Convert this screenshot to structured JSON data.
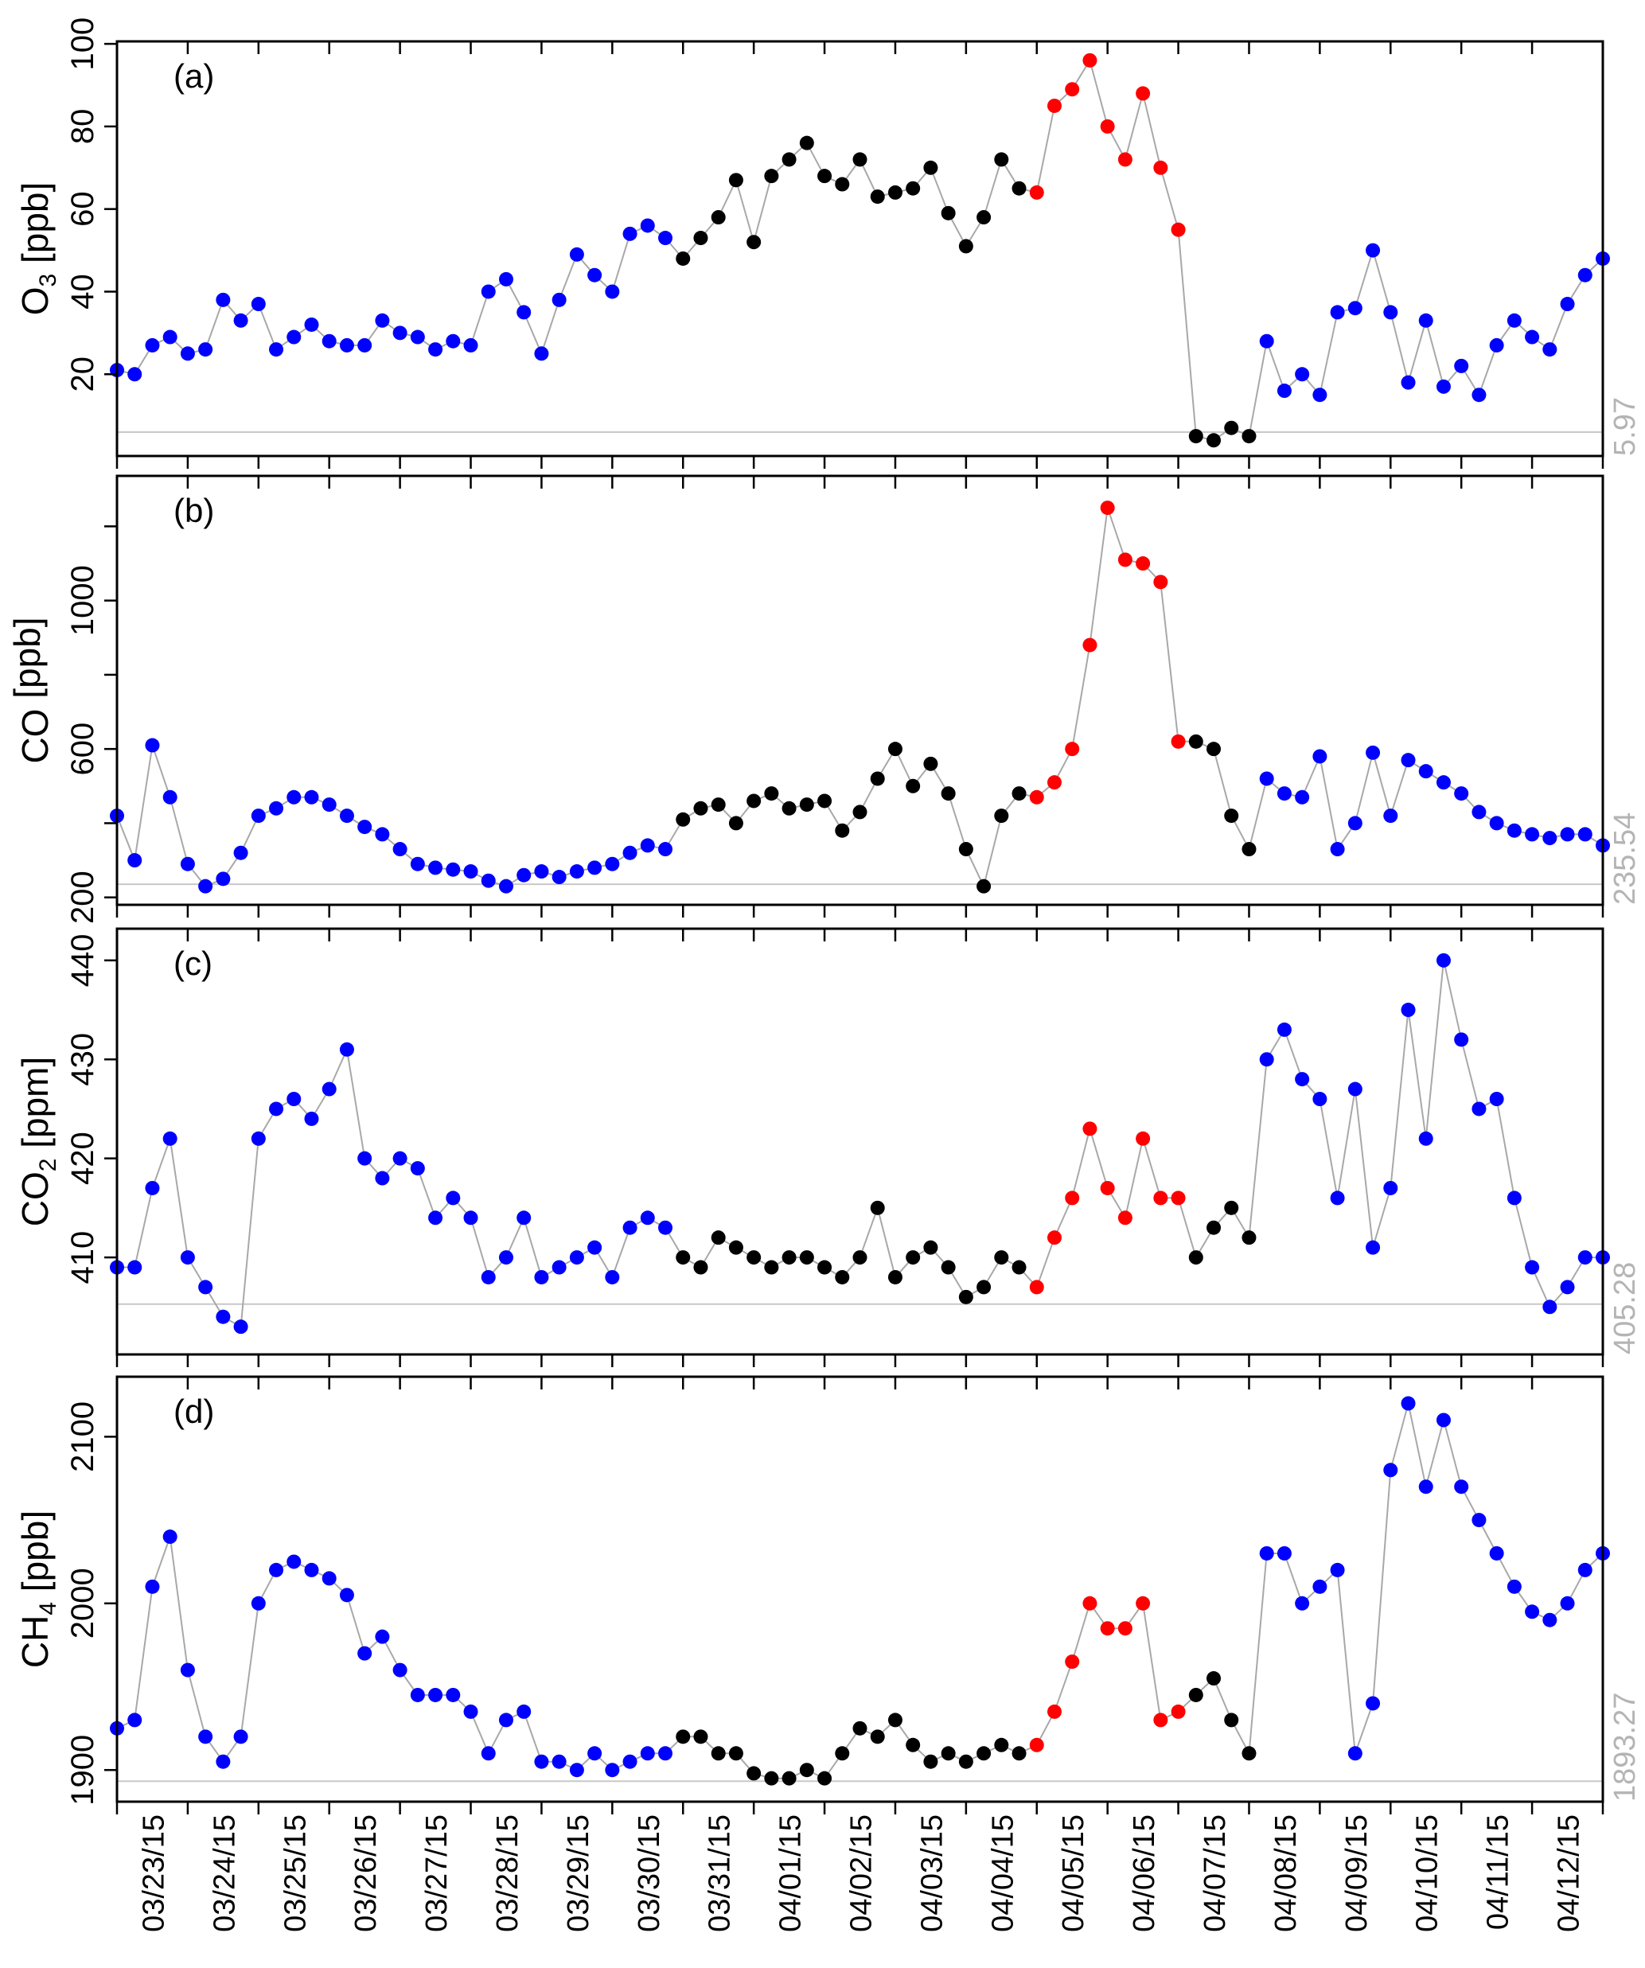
{
  "chart_data": [
    {
      "type": "scatter",
      "panel_tag": "(a)",
      "ylabel": {
        "species": "O",
        "sub": "3",
        "unit": " [ppb]"
      },
      "ylim": [
        0.2,
        100.6
      ],
      "yticks": [
        20,
        40,
        60,
        80,
        100
      ],
      "ytick_labels": [
        "20",
        "40",
        "60",
        "80",
        "100"
      ],
      "minor_yticks": [],
      "reference_line": 5.97,
      "reference_label": "5.97",
      "values": [
        21,
        20,
        27,
        29,
        25,
        26,
        38,
        33,
        37,
        26,
        29,
        32,
        28,
        27,
        27,
        33,
        30,
        29,
        26,
        28,
        27,
        40,
        43,
        35,
        25,
        38,
        49,
        44,
        40,
        54,
        56,
        53,
        48,
        53,
        58,
        67,
        52,
        68,
        72,
        76,
        68,
        66,
        72,
        63,
        64,
        65,
        70,
        59,
        51,
        58,
        72,
        65,
        64,
        85,
        89,
        96,
        80,
        72,
        88,
        70,
        55,
        5,
        4,
        7,
        5,
        28,
        16,
        20,
        15,
        35,
        36,
        50,
        35,
        18,
        33,
        17,
        22,
        15,
        27,
        33,
        29,
        26,
        37,
        44,
        48
      ]
    },
    {
      "type": "scatter",
      "panel_tag": "(b)",
      "ylabel": {
        "species": "CO",
        "sub": "",
        "unit": " [ppb]"
      },
      "ylim": [
        180,
        1336
      ],
      "yticks": [
        200,
        600,
        1000
      ],
      "ytick_labels": [
        "200",
        "600",
        "1000"
      ],
      "minor_yticks": [
        400,
        800,
        1200
      ],
      "reference_line": 235.54,
      "reference_label": "235.54",
      "values": [
        420,
        300,
        610,
        470,
        290,
        230,
        250,
        320,
        420,
        440,
        470,
        470,
        450,
        420,
        390,
        370,
        330,
        290,
        280,
        275,
        270,
        245,
        230,
        260,
        270,
        255,
        270,
        280,
        290,
        320,
        340,
        330,
        410,
        440,
        450,
        400,
        460,
        480,
        440,
        450,
        460,
        380,
        430,
        520,
        600,
        500,
        560,
        480,
        330,
        230,
        420,
        480,
        470,
        510,
        600,
        880,
        1250,
        1110,
        1100,
        1050,
        620,
        620,
        600,
        420,
        330,
        520,
        480,
        470,
        580,
        330,
        400,
        590,
        420,
        570,
        540,
        510,
        480,
        430,
        400,
        380,
        370,
        360,
        370,
        370,
        340
      ]
    },
    {
      "type": "scatter",
      "panel_tag": "(c)",
      "ylabel": {
        "species": "CO",
        "sub": "2",
        "unit": " [ppm]"
      },
      "ylim": [
        400.2,
        443.2
      ],
      "yticks": [
        410,
        420,
        430,
        440
      ],
      "ytick_labels": [
        "410",
        "420",
        "430",
        "440"
      ],
      "minor_yticks": [],
      "reference_line": 405.28,
      "reference_label": "405.28",
      "values": [
        409,
        409,
        417,
        422,
        410,
        407,
        404,
        403,
        422,
        425,
        426,
        424,
        427,
        431,
        420,
        418,
        420,
        419,
        414,
        416,
        414,
        408,
        410,
        414,
        408,
        409,
        410,
        411,
        408,
        413,
        414,
        413,
        410,
        409,
        412,
        411,
        410,
        409,
        410,
        410,
        409,
        408,
        410,
        415,
        408,
        410,
        411,
        409,
        406,
        407,
        410,
        409,
        407,
        412,
        416,
        423,
        417,
        414,
        422,
        416,
        416,
        410,
        413,
        415,
        412,
        430,
        433,
        428,
        426,
        416,
        427,
        411,
        417,
        435,
        422,
        440,
        432,
        425,
        426,
        416,
        409,
        405,
        407,
        410,
        410
      ]
    },
    {
      "type": "scatter",
      "panel_tag": "(d)",
      "ylabel": {
        "species": "CH",
        "sub": "4",
        "unit": " [ppb]"
      },
      "ylim": [
        1881,
        2136
      ],
      "yticks": [
        1900,
        2000,
        2100
      ],
      "ytick_labels": [
        "1900",
        "2000",
        "2100"
      ],
      "minor_yticks": [],
      "reference_line": 1893.27,
      "reference_label": "1893.27",
      "values": [
        1925,
        1930,
        2010,
        2040,
        1960,
        1920,
        1905,
        1920,
        2000,
        2020,
        2025,
        2020,
        2015,
        2005,
        1970,
        1980,
        1960,
        1945,
        1945,
        1945,
        1935,
        1910,
        1930,
        1935,
        1905,
        1905,
        1900,
        1910,
        1900,
        1905,
        1910,
        1910,
        1920,
        1920,
        1910,
        1910,
        1898,
        1895,
        1895,
        1900,
        1895,
        1910,
        1925,
        1920,
        1930,
        1915,
        1905,
        1910,
        1905,
        1910,
        1915,
        1910,
        1915,
        1935,
        1965,
        2000,
        1985,
        1985,
        2000,
        1930,
        1935,
        1945,
        1955,
        1930,
        1910,
        2030,
        2030,
        2000,
        2010,
        2020,
        1910,
        1940,
        2080,
        2120,
        2070,
        2110,
        2070,
        2050,
        2030,
        2010,
        1995,
        1990,
        2000,
        2020,
        2030
      ]
    }
  ],
  "x": {
    "start": 0,
    "step": 0.25,
    "xlim": [
      0,
      21
    ],
    "date_labels": [
      "03/23/15",
      "03/24/15",
      "03/25/15",
      "03/26/15",
      "03/27/15",
      "03/28/15",
      "03/29/15",
      "03/30/15",
      "03/31/15",
      "04/01/15",
      "04/02/15",
      "04/03/15",
      "04/04/15",
      "04/05/15",
      "04/06/15",
      "04/07/15",
      "04/08/15",
      "04/09/15",
      "04/10/15",
      "04/11/15",
      "04/12/15"
    ]
  },
  "color_segments": [
    {
      "from": 0,
      "to": 8,
      "color": "#0000ff"
    },
    {
      "from": 8,
      "to": 13,
      "color": "#000000"
    },
    {
      "from": 13,
      "to": 15.1,
      "color": "#ff0000"
    },
    {
      "from": 15.1,
      "to": 16.1,
      "color": "#000000"
    },
    {
      "from": 16.1,
      "to": 21.1,
      "color": "#0000ff"
    }
  ],
  "colors": {
    "connector": "#a8a8a8",
    "reference": "#c8c8c8",
    "reference_label": "#b4b4b4"
  }
}
